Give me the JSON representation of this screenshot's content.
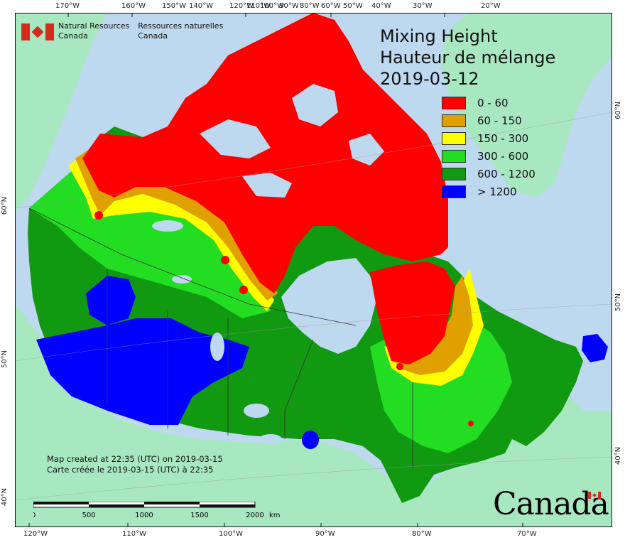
{
  "title": {
    "line1": "Mixing Height",
    "line2": "Hauteur de mélange",
    "date": "2019-03-12"
  },
  "legend": [
    {
      "label": "0 - 60",
      "color": "#ff0000"
    },
    {
      "label": "60 - 150",
      "color": "#e0a000"
    },
    {
      "label": "150 - 300",
      "color": "#ffff00"
    },
    {
      "label": "300 - 600",
      "color": "#22dd22"
    },
    {
      "label": "600 - 1200",
      "color": "#119911"
    },
    {
      "label": "> 1200",
      "color": "#0000ff"
    }
  ],
  "agency": {
    "en_line1": "Natural Resources",
    "en_line2": "Canada",
    "fr_line1": "Ressources naturelles",
    "fr_line2": "Canada"
  },
  "created": {
    "en": "Map created at 22:35 (UTC) on 2019-03-15",
    "fr": "Carte créée le 2019-03-15 (UTC) à 22:35"
  },
  "scale": {
    "ticks": [
      "0",
      "500",
      "1000",
      "1500",
      "2000"
    ],
    "unit": "km"
  },
  "wordmark": "Canada",
  "graticule": {
    "top": [
      "170°W",
      "160°W",
      "150°W",
      "140°W",
      "120°W",
      "110°W",
      "100°W",
      "90°W",
      "80°W",
      "60°W",
      "50°W",
      "40°W",
      "30°W",
      "20°W"
    ],
    "bottom": [
      "120°W",
      "110°W",
      "100°W",
      "90°W",
      "80°W",
      "70°W"
    ],
    "left": [
      "60°N",
      "50°N",
      "40°N"
    ],
    "right": [
      "60°N",
      "50°N",
      "40°N"
    ]
  },
  "colors": {
    "ocean": "#bdd8ef",
    "land_other": "#a8e8c0",
    "frame": "#111111"
  }
}
